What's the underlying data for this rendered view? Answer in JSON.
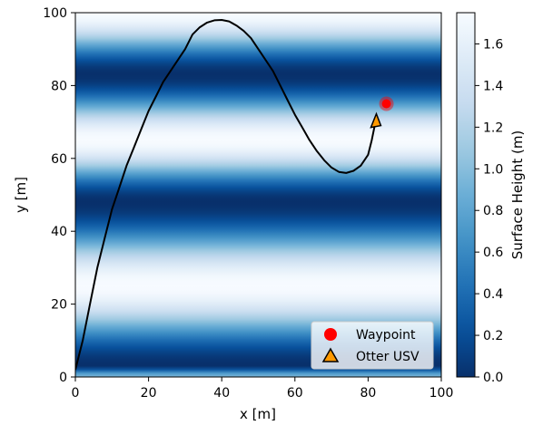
{
  "chart_data": {
    "type": "heatmap",
    "title": "",
    "xlabel": "x [m]",
    "ylabel": "y [m]",
    "xlim": [
      0,
      100
    ],
    "ylim": [
      0,
      100
    ],
    "xticks": [
      0,
      20,
      40,
      60,
      80,
      100
    ],
    "yticks": [
      0,
      20,
      40,
      60,
      80,
      100
    ],
    "grid": false,
    "colormap": "Blues",
    "surface": {
      "description_units": "m",
      "min": 0.0,
      "max": 1.75,
      "dark_bands_y": [
        3,
        48,
        83
      ],
      "light_bands_y": [
        25,
        65,
        100
      ]
    },
    "colorbar": {
      "label": "Surface Height (m)",
      "ticks": [
        0.0,
        0.2,
        0.4,
        0.6,
        0.8,
        1.0,
        1.2,
        1.4,
        1.6
      ],
      "tick_labels": [
        "0.0",
        "0.2",
        "0.4",
        "0.6",
        "0.8",
        "1.0",
        "1.2",
        "1.4",
        "1.6"
      ],
      "range": [
        0.0,
        1.75
      ]
    },
    "path": {
      "color": "#000000",
      "points": [
        [
          0,
          2
        ],
        [
          2,
          10
        ],
        [
          4,
          20
        ],
        [
          6,
          30
        ],
        [
          8,
          38
        ],
        [
          10,
          46
        ],
        [
          12,
          52
        ],
        [
          14,
          58
        ],
        [
          16,
          63
        ],
        [
          18,
          68
        ],
        [
          20,
          73
        ],
        [
          22,
          77
        ],
        [
          24,
          81
        ],
        [
          26,
          84
        ],
        [
          28,
          87
        ],
        [
          30,
          90
        ],
        [
          32,
          94
        ],
        [
          34,
          96
        ],
        [
          36,
          97.3
        ],
        [
          38,
          97.9
        ],
        [
          40,
          98
        ],
        [
          42,
          97.6
        ],
        [
          44,
          96.5
        ],
        [
          46,
          95
        ],
        [
          48,
          93
        ],
        [
          50,
          90
        ],
        [
          52,
          87
        ],
        [
          54,
          84
        ],
        [
          56,
          80
        ],
        [
          58,
          76
        ],
        [
          60,
          72
        ],
        [
          62,
          68.5
        ],
        [
          64,
          65
        ],
        [
          66,
          62
        ],
        [
          68,
          59.5
        ],
        [
          70,
          57.5
        ],
        [
          72,
          56.3
        ],
        [
          74,
          56
        ],
        [
          76,
          56.6
        ],
        [
          78,
          58
        ],
        [
          80,
          61
        ],
        [
          81,
          65
        ],
        [
          82,
          70
        ]
      ]
    },
    "legend": {
      "placement": "bottom-right",
      "entries": [
        {
          "label": "Waypoint",
          "marker": "circle",
          "color": "#ff0000"
        },
        {
          "label": "Otter USV",
          "marker": "triangle",
          "color": "#ff9900"
        }
      ]
    },
    "waypoint": {
      "x": 85,
      "y": 75,
      "color": "#ff0000"
    },
    "usv": {
      "x": 82,
      "y": 70,
      "color": "#ff9900"
    }
  }
}
